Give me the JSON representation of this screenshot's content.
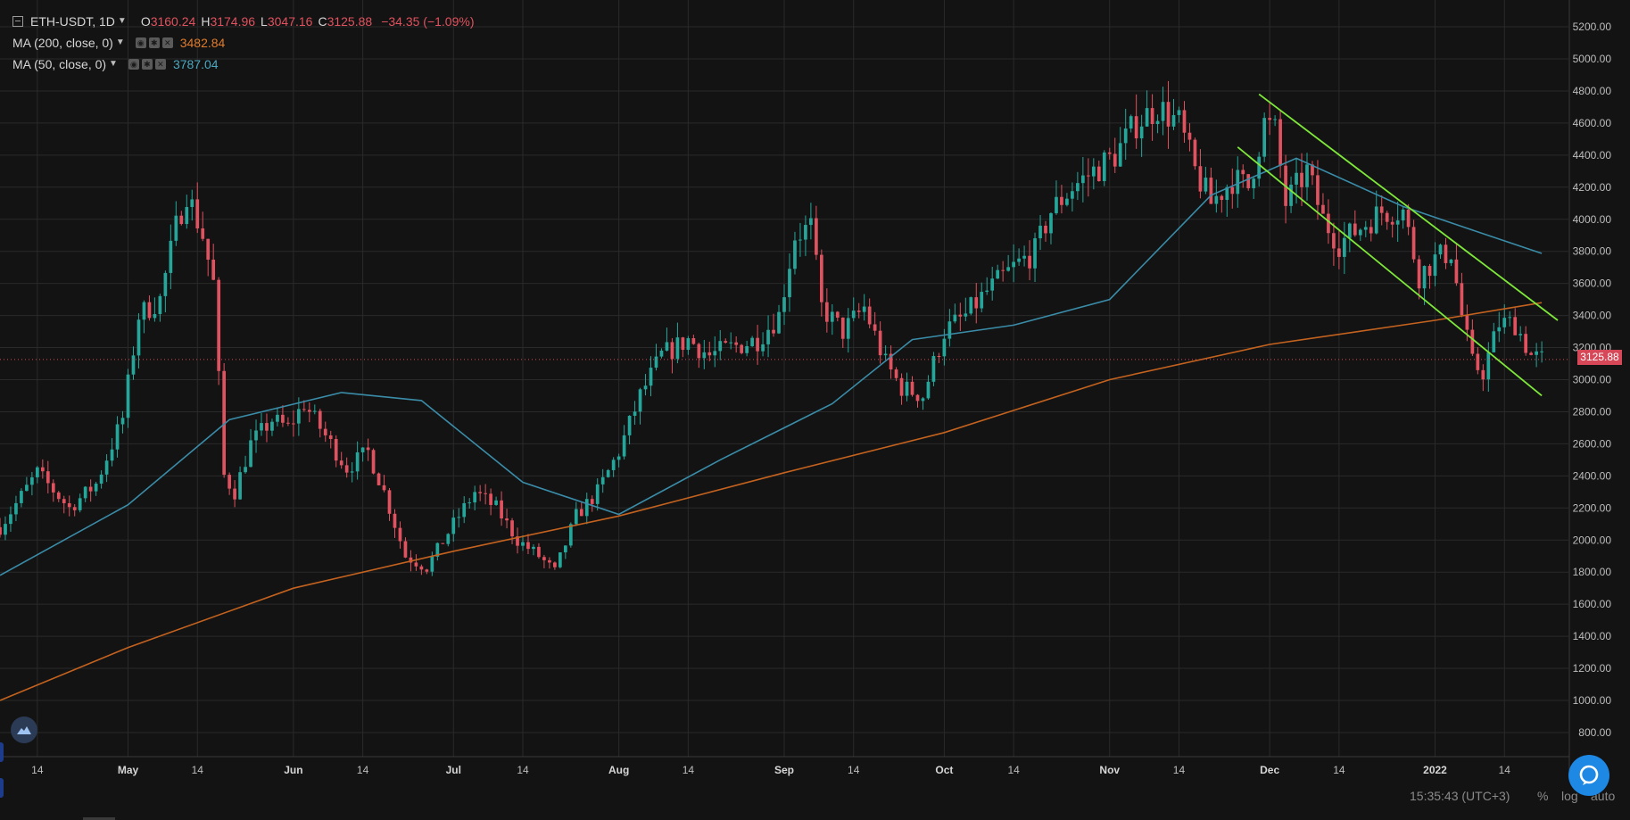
{
  "header": {
    "symbol": "ETH-USDT, 1D",
    "open_key": "O",
    "open": "3160.24",
    "high_key": "H",
    "high": "3174.96",
    "low_key": "L",
    "low": "3047.16",
    "close_key": "C",
    "close": "3125.88",
    "change": "−34.35 (−1.09%)"
  },
  "indicators": [
    {
      "name": "MA (200, close, 0)",
      "value": "3482.84",
      "color": "#e07b2a"
    },
    {
      "name": "MA (50, close, 0)",
      "value": "3787.04",
      "color": "#4aa8c0"
    }
  ],
  "last_price": "3125.88",
  "footer": {
    "clock": "15:35:43 (UTC+3)",
    "pct": "%",
    "log": "log",
    "auto": "auto"
  },
  "colors": {
    "up": "#26a69a",
    "down": "#e0525f",
    "ma200": "#c4621f",
    "ma50": "#3a8ca8",
    "trend": "#7ee83a",
    "bg": "#131313",
    "grid": "#2a2a2a"
  },
  "icons": {
    "logo": "cloud-logo-icon",
    "chat": "chat-bubble-icon",
    "menu": "legend-toggle-icon"
  },
  "chart_data": {
    "type": "candlestick",
    "title": "ETH-USDT, 1D",
    "y_ticks": [
      800,
      1000,
      1200,
      1400,
      1600,
      1800,
      2000,
      2200,
      2400,
      2600,
      2800,
      3000,
      3200,
      3400,
      3600,
      3800,
      4000,
      4200,
      4400,
      4600,
      4800,
      5000,
      5200
    ],
    "ylim": [
      700,
      5300
    ],
    "x_ticks": [
      {
        "date": "2021-04-14",
        "label": "14"
      },
      {
        "date": "2021-05-01",
        "label": "May"
      },
      {
        "date": "2021-05-14",
        "label": "14"
      },
      {
        "date": "2021-06-01",
        "label": "Jun"
      },
      {
        "date": "2021-06-14",
        "label": "14"
      },
      {
        "date": "2021-07-01",
        "label": "Jul"
      },
      {
        "date": "2021-07-14",
        "label": "14"
      },
      {
        "date": "2021-08-01",
        "label": "Aug"
      },
      {
        "date": "2021-08-14",
        "label": "14"
      },
      {
        "date": "2021-09-01",
        "label": "Sep"
      },
      {
        "date": "2021-09-14",
        "label": "14"
      },
      {
        "date": "2021-10-01",
        "label": "Oct"
      },
      {
        "date": "2021-10-14",
        "label": "14"
      },
      {
        "date": "2021-11-01",
        "label": "Nov"
      },
      {
        "date": "2021-11-14",
        "label": "14"
      },
      {
        "date": "2021-12-01",
        "label": "Dec"
      },
      {
        "date": "2021-12-14",
        "label": "14"
      },
      {
        "date": "2022-01-01",
        "label": "2022"
      },
      {
        "date": "2022-01-14",
        "label": "14"
      }
    ],
    "xlim": [
      "2021-04-07",
      "2022-01-26"
    ],
    "grid": true,
    "close_series": [
      [
        "2021-04-07",
        2080
      ],
      [
        "2021-04-14",
        2420
      ],
      [
        "2021-04-20",
        2200
      ],
      [
        "2021-04-25",
        2350
      ],
      [
        "2021-04-30",
        2760
      ],
      [
        "2021-05-03",
        3400
      ],
      [
        "2021-05-07",
        3500
      ],
      [
        "2021-05-10",
        3950
      ],
      [
        "2021-05-12",
        4170
      ],
      [
        "2021-05-15",
        3900
      ],
      [
        "2021-05-17",
        3600
      ],
      [
        "2021-05-19",
        2400
      ],
      [
        "2021-05-21",
        2300
      ],
      [
        "2021-05-24",
        2600
      ],
      [
        "2021-05-28",
        2750
      ],
      [
        "2021-05-31",
        2700
      ],
      [
        "2021-06-03",
        2850
      ],
      [
        "2021-06-08",
        2600
      ],
      [
        "2021-06-11",
        2450
      ],
      [
        "2021-06-15",
        2550
      ],
      [
        "2021-06-18",
        2300
      ],
      [
        "2021-06-22",
        1900
      ],
      [
        "2021-06-26",
        1830
      ],
      [
        "2021-07-01",
        2100
      ],
      [
        "2021-07-05",
        2300
      ],
      [
        "2021-07-09",
        2200
      ],
      [
        "2021-07-13",
        2000
      ],
      [
        "2021-07-17",
        1900
      ],
      [
        "2021-07-20",
        1800
      ],
      [
        "2021-07-24",
        2150
      ],
      [
        "2021-07-28",
        2300
      ],
      [
        "2021-08-01",
        2550
      ],
      [
        "2021-08-05",
        2900
      ],
      [
        "2021-08-09",
        3150
      ],
      [
        "2021-08-14",
        3250
      ],
      [
        "2021-08-18",
        3150
      ],
      [
        "2021-08-22",
        3200
      ],
      [
        "2021-08-27",
        3250
      ],
      [
        "2021-08-31",
        3400
      ],
      [
        "2021-09-03",
        3900
      ],
      [
        "2021-09-06",
        3950
      ],
      [
        "2021-09-08",
        3450
      ],
      [
        "2021-09-12",
        3300
      ],
      [
        "2021-09-16",
        3450
      ],
      [
        "2021-09-20",
        3100
      ],
      [
        "2021-09-23",
        2950
      ],
      [
        "2021-09-27",
        2900
      ],
      [
        "2021-10-01",
        3300
      ],
      [
        "2021-10-05",
        3400
      ],
      [
        "2021-10-09",
        3550
      ],
      [
        "2021-10-14",
        3700
      ],
      [
        "2021-10-18",
        3800
      ],
      [
        "2021-10-21",
        4050
      ],
      [
        "2021-10-25",
        4200
      ],
      [
        "2021-10-29",
        4300
      ],
      [
        "2021-11-02",
        4400
      ],
      [
        "2021-11-06",
        4600
      ],
      [
        "2021-11-10",
        4700
      ],
      [
        "2021-11-14",
        4600
      ],
      [
        "2021-11-17",
        4300
      ],
      [
        "2021-11-20",
        4100
      ],
      [
        "2021-11-24",
        4250
      ],
      [
        "2021-11-27",
        4200
      ],
      [
        "2021-11-30",
        4600
      ],
      [
        "2021-12-02",
        4550
      ],
      [
        "2021-12-04",
        4100
      ],
      [
        "2021-12-08",
        4300
      ],
      [
        "2021-12-11",
        4000
      ],
      [
        "2021-12-14",
        3850
      ],
      [
        "2021-12-18",
        3950
      ],
      [
        "2021-12-22",
        4050
      ],
      [
        "2021-12-26",
        4050
      ],
      [
        "2021-12-29",
        3650
      ],
      [
        "2022-01-01",
        3750
      ],
      [
        "2022-01-04",
        3800
      ],
      [
        "2022-01-06",
        3400
      ],
      [
        "2022-01-08",
        3100
      ],
      [
        "2022-01-10",
        3050
      ],
      [
        "2022-01-13",
        3350
      ],
      [
        "2022-01-16",
        3350
      ],
      [
        "2022-01-19",
        3150
      ],
      [
        "2022-01-21",
        3126
      ]
    ],
    "ma200": [
      [
        "2021-04-07",
        1000
      ],
      [
        "2021-05-01",
        1330
      ],
      [
        "2021-06-01",
        1700
      ],
      [
        "2021-07-01",
        1930
      ],
      [
        "2021-08-01",
        2150
      ],
      [
        "2021-09-01",
        2420
      ],
      [
        "2021-10-01",
        2670
      ],
      [
        "2021-11-01",
        3000
      ],
      [
        "2021-12-01",
        3220
      ],
      [
        "2022-01-01",
        3370
      ],
      [
        "2022-01-21",
        3480
      ]
    ],
    "ma50": [
      [
        "2021-04-07",
        1780
      ],
      [
        "2021-05-01",
        2220
      ],
      [
        "2021-05-20",
        2750
      ],
      [
        "2021-06-10",
        2920
      ],
      [
        "2021-06-25",
        2870
      ],
      [
        "2021-07-14",
        2360
      ],
      [
        "2021-08-01",
        2160
      ],
      [
        "2021-08-20",
        2500
      ],
      [
        "2021-09-10",
        2850
      ],
      [
        "2021-09-25",
        3250
      ],
      [
        "2021-10-14",
        3340
      ],
      [
        "2021-11-01",
        3500
      ],
      [
        "2021-11-20",
        4150
      ],
      [
        "2021-12-06",
        4380
      ],
      [
        "2021-12-26",
        4080
      ],
      [
        "2022-01-10",
        3910
      ],
      [
        "2022-01-21",
        3787
      ]
    ],
    "trendlines": [
      {
        "from": [
          "2021-11-29",
          4780
        ],
        "to": [
          "2022-01-24",
          3370
        ]
      },
      {
        "from": [
          "2021-11-25",
          4450
        ],
        "to": [
          "2022-01-21",
          2900
        ]
      }
    ],
    "horizontal_line": 3125.88
  }
}
